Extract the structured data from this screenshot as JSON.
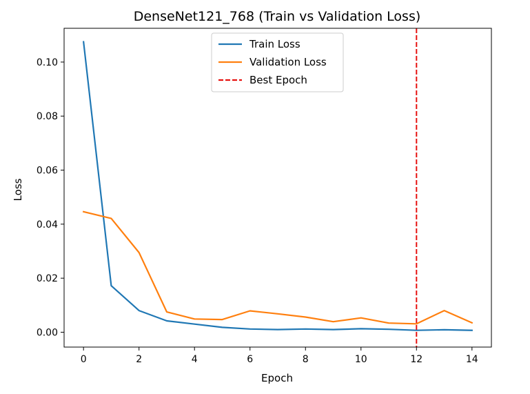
{
  "chart_data": {
    "type": "line",
    "title": "DenseNet121_768 (Train vs Validation Loss)",
    "xlabel": "Epoch",
    "ylabel": "Loss",
    "x": [
      0,
      1,
      2,
      3,
      4,
      5,
      6,
      7,
      8,
      9,
      10,
      11,
      12,
      13,
      14
    ],
    "xlim": [
      -0.7,
      14.7
    ],
    "ylim": [
      -0.0055,
      0.1125
    ],
    "xticks": [
      0,
      2,
      4,
      6,
      8,
      10,
      12,
      14
    ],
    "yticks": [
      0.0,
      0.02,
      0.04,
      0.06,
      0.08,
      0.1
    ],
    "ytick_labels": [
      "0.00",
      "0.02",
      "0.04",
      "0.06",
      "0.08",
      "0.10"
    ],
    "grid": false,
    "legend_position": "top-center",
    "series": [
      {
        "name": "Train Loss",
        "color": "#1f77b4",
        "style": "solid",
        "values": [
          0.1075,
          0.0172,
          0.008,
          0.0042,
          0.003,
          0.0018,
          0.0012,
          0.001,
          0.0012,
          0.001,
          0.0013,
          0.0011,
          0.0007,
          0.0009,
          0.0007
        ]
      },
      {
        "name": "Validation Loss",
        "color": "#ff7f0e",
        "style": "solid",
        "values": [
          0.0446,
          0.0421,
          0.0295,
          0.0075,
          0.0049,
          0.0047,
          0.0079,
          0.0068,
          0.0056,
          0.0039,
          0.0053,
          0.0034,
          0.0031,
          0.008,
          0.0035
        ]
      }
    ],
    "vlines": [
      {
        "name": "Best Epoch",
        "x": 12,
        "color": "#e6110f",
        "style": "dashed"
      }
    ]
  }
}
